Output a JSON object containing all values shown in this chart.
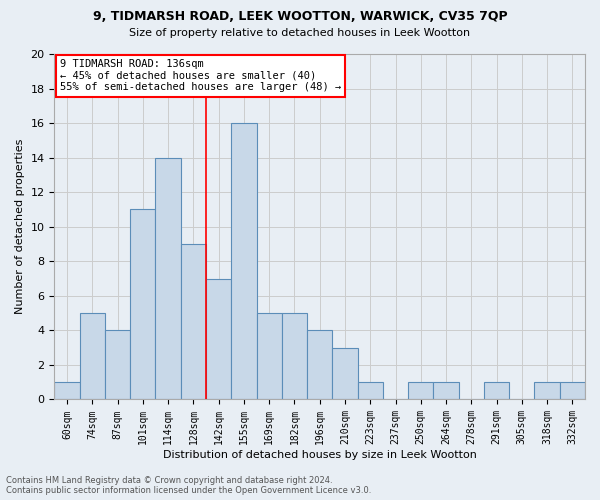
{
  "title1": "9, TIDMARSH ROAD, LEEK WOOTTON, WARWICK, CV35 7QP",
  "title2": "Size of property relative to detached houses in Leek Wootton",
  "xlabel": "Distribution of detached houses by size in Leek Wootton",
  "ylabel": "Number of detached properties",
  "categories": [
    "60sqm",
    "74sqm",
    "87sqm",
    "101sqm",
    "114sqm",
    "128sqm",
    "142sqm",
    "155sqm",
    "169sqm",
    "182sqm",
    "196sqm",
    "210sqm",
    "223sqm",
    "237sqm",
    "250sqm",
    "264sqm",
    "278sqm",
    "291sqm",
    "305sqm",
    "318sqm",
    "332sqm"
  ],
  "values": [
    1,
    5,
    4,
    11,
    14,
    9,
    7,
    16,
    5,
    5,
    4,
    3,
    1,
    0,
    1,
    1,
    0,
    1,
    0,
    1,
    1
  ],
  "bar_color": "#c8d8e8",
  "bar_edge_color": "#5b8db8",
  "grid_color": "#cccccc",
  "bg_color": "#e8eef4",
  "red_line_index": 5.5,
  "annotation_line1": "9 TIDMARSH ROAD: 136sqm",
  "annotation_line2": "← 45% of detached houses are smaller (40)",
  "annotation_line3": "55% of semi-detached houses are larger (48) →",
  "annotation_box_color": "white",
  "annotation_box_edge": "red",
  "footer1": "Contains HM Land Registry data © Crown copyright and database right 2024.",
  "footer2": "Contains public sector information licensed under the Open Government Licence v3.0.",
  "ylim": [
    0,
    20
  ],
  "yticks": [
    0,
    2,
    4,
    6,
    8,
    10,
    12,
    14,
    16,
    18,
    20
  ]
}
